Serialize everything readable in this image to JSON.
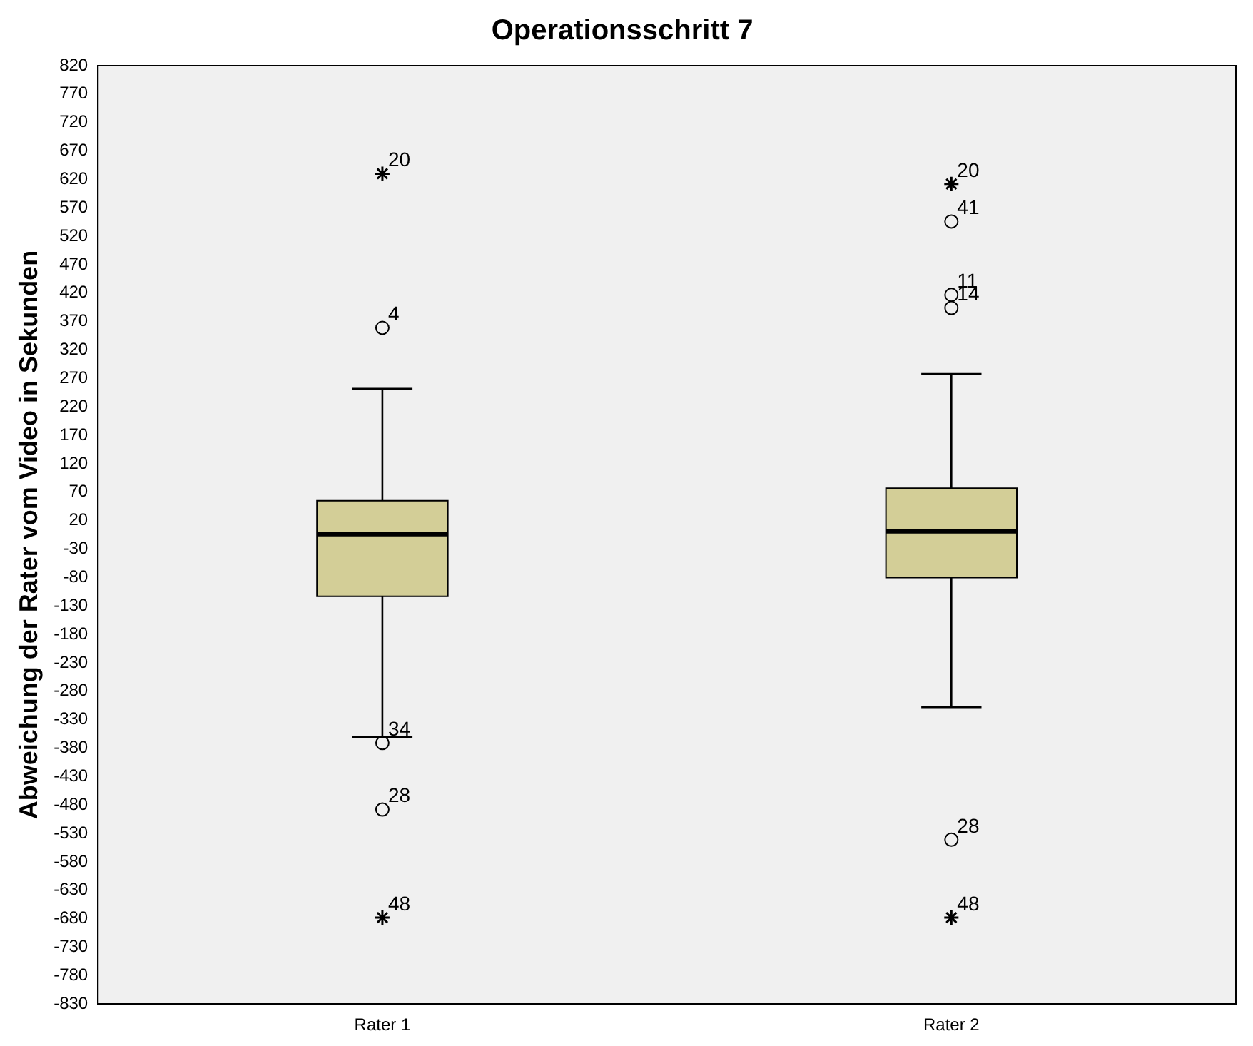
{
  "chart_data": {
    "type": "box",
    "title": "Operationsschritt 7",
    "ylabel": "Abweichung der Rater vom Video in Sekunden",
    "categories": [
      "Rater 1",
      "Rater 2"
    ],
    "color": "#d3ce97",
    "boxes": [
      {
        "low": -361,
        "q1": -113,
        "median": -4,
        "q3": 55,
        "high": 252
      },
      {
        "low": -308,
        "q1": -80,
        "median": 1,
        "q3": 77,
        "high": 278
      }
    ],
    "series": [
      {
        "type": "scatter",
        "marker": "cross",
        "color": "#000000",
        "x": [
          "Rater 1",
          "Rater 1",
          "Rater 2",
          "Rater 2"
        ],
        "values": [
          630,
          -678,
          612,
          -678
        ]
      },
      {
        "type": "scatter",
        "marker": "circle",
        "color": "#000000",
        "x": [
          "Rater 1",
          "Rater 1",
          "Rater 1",
          "Rater 2",
          "Rater 2",
          "Rater 2",
          "Rater 2"
        ],
        "values": [
          359,
          -371,
          -488,
          546,
          417,
          394,
          -541
        ]
      }
    ],
    "ylim": [
      -830,
      820
    ],
    "yticks": [
      -830,
      -780,
      -730,
      -680,
      -630,
      -580,
      -530,
      -480,
      -430,
      -380,
      -330,
      -280,
      -230,
      -180,
      -130,
      -80,
      -30,
      20,
      70,
      120,
      170,
      220,
      270,
      320,
      370,
      420,
      470,
      520,
      570,
      620,
      670,
      720,
      770,
      820
    ],
    "grid": false,
    "legend": false,
    "annotations": [
      {
        "text": "20",
        "x": "Rater 1",
        "y": 630
      },
      {
        "text": "4",
        "x": "Rater 1",
        "y": 359
      },
      {
        "text": "34",
        "x": "Rater 1",
        "y": -371
      },
      {
        "text": "28",
        "x": "Rater 1",
        "y": -488
      },
      {
        "text": "48",
        "x": "Rater 1",
        "y": -678
      },
      {
        "text": "20",
        "x": "Rater 2",
        "y": 612
      },
      {
        "text": "41",
        "x": "Rater 2",
        "y": 546
      },
      {
        "text": "11",
        "x": "Rater 2",
        "y": 417
      },
      {
        "text": "14",
        "x": "Rater 2",
        "y": 394
      },
      {
        "text": "28",
        "x": "Rater 2",
        "y": -541
      },
      {
        "text": "48",
        "x": "Rater 2",
        "y": -678
      }
    ]
  }
}
